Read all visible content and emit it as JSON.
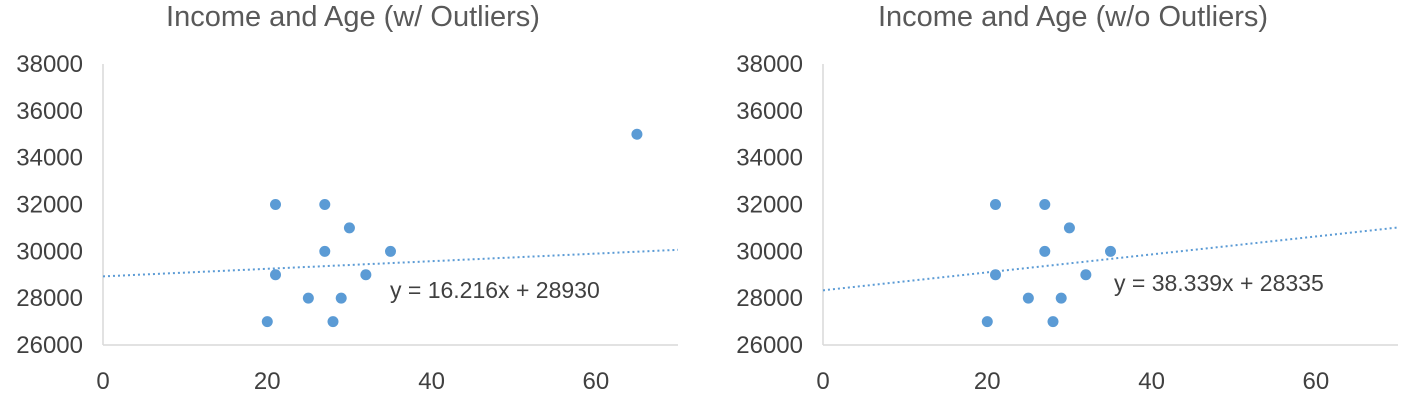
{
  "chart_data": [
    {
      "type": "scatter",
      "title": "Income and Age (w/ Outliers)",
      "xlim": [
        0,
        70
      ],
      "ylim": [
        26000,
        38000
      ],
      "x_ticks": [
        "0",
        "20",
        "40",
        "60"
      ],
      "y_ticks": [
        "26000",
        "28000",
        "30000",
        "32000",
        "34000",
        "36000",
        "38000"
      ],
      "points": [
        {
          "x": 20,
          "y": 27000
        },
        {
          "x": 21,
          "y": 32000
        },
        {
          "x": 21,
          "y": 29000
        },
        {
          "x": 25,
          "y": 28000
        },
        {
          "x": 27,
          "y": 32000
        },
        {
          "x": 27,
          "y": 30000
        },
        {
          "x": 28,
          "y": 27000
        },
        {
          "x": 29,
          "y": 28000
        },
        {
          "x": 30,
          "y": 31000
        },
        {
          "x": 32,
          "y": 29000
        },
        {
          "x": 35,
          "y": 30000
        },
        {
          "x": 65,
          "y": 35000
        }
      ],
      "trendline": {
        "slope": 16.216,
        "intercept": 28930,
        "label": "y = 16.216x + 28930"
      },
      "marker_color": "#5b9bd5",
      "grid": false
    },
    {
      "type": "scatter",
      "title": "Income and Age (w/o Outliers)",
      "xlim": [
        0,
        70
      ],
      "ylim": [
        26000,
        38000
      ],
      "x_ticks": [
        "0",
        "20",
        "40",
        "60"
      ],
      "y_ticks": [
        "26000",
        "28000",
        "30000",
        "32000",
        "34000",
        "36000",
        "38000"
      ],
      "points": [
        {
          "x": 20,
          "y": 27000
        },
        {
          "x": 21,
          "y": 32000
        },
        {
          "x": 21,
          "y": 29000
        },
        {
          "x": 25,
          "y": 28000
        },
        {
          "x": 27,
          "y": 32000
        },
        {
          "x": 27,
          "y": 30000
        },
        {
          "x": 28,
          "y": 27000
        },
        {
          "x": 29,
          "y": 28000
        },
        {
          "x": 30,
          "y": 31000
        },
        {
          "x": 32,
          "y": 29000
        },
        {
          "x": 35,
          "y": 30000
        }
      ],
      "trendline": {
        "slope": 38.339,
        "intercept": 28335,
        "label": "y = 38.339x + 28335"
      },
      "marker_color": "#5b9bd5",
      "grid": false
    }
  ]
}
